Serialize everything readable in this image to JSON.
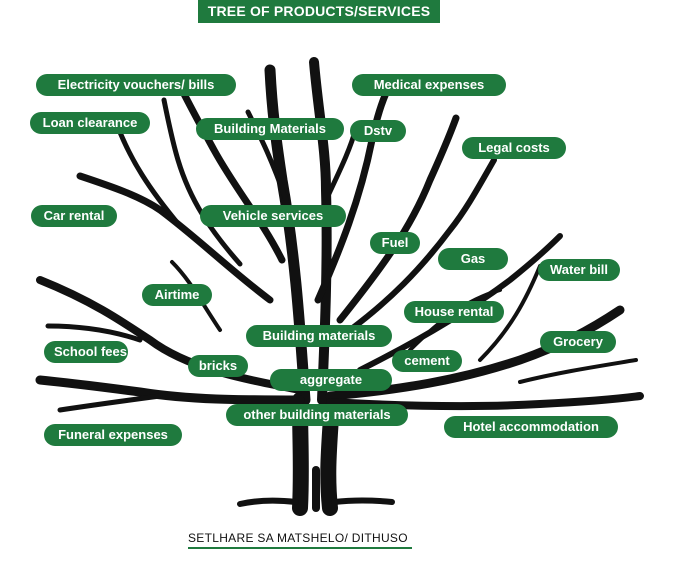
{
  "title": "TREE OF PRODUCTS/SERVICES",
  "footer": "SETLHARE SA MATSHELO/ DITHUSO",
  "colors": {
    "accent": "#1f7a3e",
    "tree": "#111111",
    "text_on_accent": "#ffffff"
  },
  "labels": {
    "electricity": "Electricity vouchers/ bills",
    "medical": "Medical expenses",
    "loan": "Loan clearance",
    "building_top": "Building Materials",
    "dstv": "Dstv",
    "legal": "Legal costs",
    "car_rental": "Car rental",
    "vehicle": "Vehicle services",
    "fuel": "Fuel",
    "gas": "Gas",
    "water": "Water bill",
    "airtime": "Airtime",
    "house_rental": "House rental",
    "building_mid": "Building materials",
    "school": "School fees",
    "bricks": "bricks",
    "cement": "cement",
    "grocery": "Grocery",
    "aggregate": "aggregate",
    "other_building": "other building materials",
    "funeral": "Funeral expenses",
    "hotel": "Hotel accommodation"
  }
}
